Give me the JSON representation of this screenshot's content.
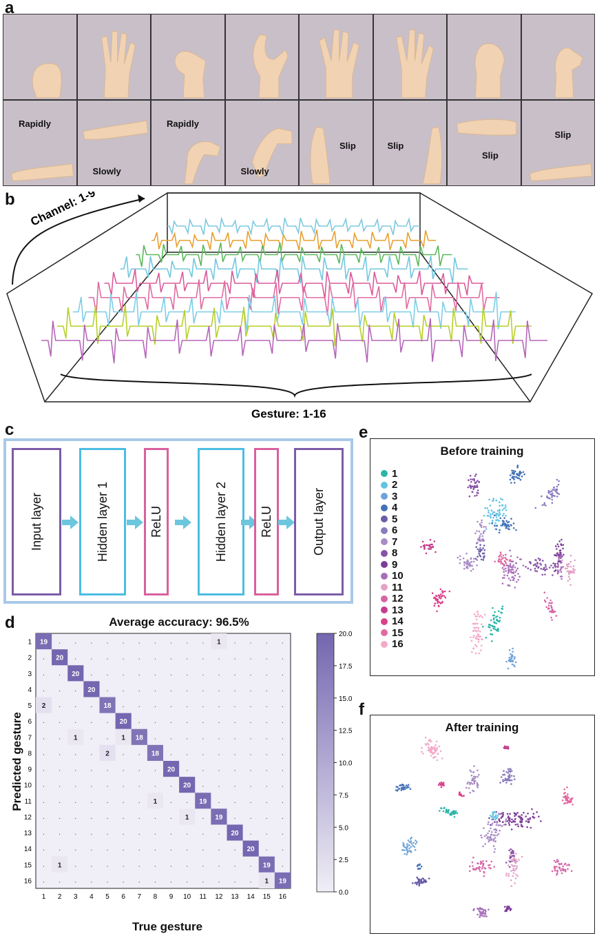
{
  "panel_labels": {
    "a": "a",
    "b": "b",
    "c": "c",
    "d": "d",
    "e": "e",
    "f": "f"
  },
  "panel_a": {
    "top_row_annotations": [],
    "bottom_row_annotations": [
      {
        "cell": 0,
        "labels": [
          {
            "text": "Rapidly",
            "pos": "top"
          }
        ]
      },
      {
        "cell": 1,
        "labels": [
          {
            "text": "Slowly",
            "pos": "bottom"
          }
        ]
      },
      {
        "cell": 2,
        "labels": [
          {
            "text": "Rapidly",
            "pos": "top"
          }
        ]
      },
      {
        "cell": 3,
        "labels": [
          {
            "text": "Slowly",
            "pos": "bottom"
          }
        ]
      },
      {
        "cell": 4,
        "labels": [
          {
            "text": "Slip",
            "pos": "mid-right"
          }
        ]
      },
      {
        "cell": 5,
        "labels": [
          {
            "text": "Slip",
            "pos": "mid-left"
          }
        ]
      },
      {
        "cell": 6,
        "labels": [
          {
            "text": "Slip",
            "pos": "bottom-mid"
          }
        ]
      },
      {
        "cell": 7,
        "labels": [
          {
            "text": "Slip",
            "pos": "top-mid"
          }
        ]
      }
    ]
  },
  "panel_b": {
    "channel_label": "Channel: 1-9",
    "gesture_label": "Gesture: 1-16",
    "channel_colors": [
      "#b565b9",
      "#b8cf2a",
      "#7dcde6",
      "#e06ba0",
      "#da5a9a",
      "#73c7e0",
      "#5cb85c",
      "#e8a030",
      "#7cc8e0"
    ]
  },
  "panel_c": {
    "layers": [
      {
        "label": "Input layer",
        "color": "#7b5ca8"
      },
      {
        "label": "Hidden layer 1",
        "color": "#4bbde3"
      },
      {
        "label": "ReLU",
        "color": "#d9609e"
      },
      {
        "label": "Hidden layer 2",
        "color": "#4bbde3"
      },
      {
        "label": "ReLU",
        "color": "#d9609e"
      },
      {
        "label": "Output layer",
        "color": "#7b5ca8"
      }
    ],
    "arrow_color": "#6cc6dd"
  },
  "chart_data": [
    {
      "type": "heatmap",
      "title": "Average accuracy: 96.5%",
      "xlabel": "True gesture",
      "ylabel": "Predicted gesture",
      "x_ticks": [
        "1",
        "2",
        "3",
        "4",
        "5",
        "6",
        "7",
        "8",
        "9",
        "10",
        "11",
        "12",
        "13",
        "14",
        "15",
        "16"
      ],
      "y_ticks": [
        "1",
        "2",
        "3",
        "4",
        "5",
        "6",
        "7",
        "8",
        "9",
        "10",
        "11",
        "12",
        "13",
        "14",
        "15",
        "16"
      ],
      "colorbar_ticks": [
        "0.0",
        "2.5",
        "5.0",
        "7.5",
        "10.0",
        "12.5",
        "15.0",
        "17.5",
        "20.0"
      ],
      "colorbar_range": [
        0,
        20
      ],
      "color_low": "#f0eef6",
      "color_high": "#7466b0",
      "cells": [
        {
          "pred": 1,
          "true": 1,
          "value": 19
        },
        {
          "pred": 1,
          "true": 12,
          "value": 1
        },
        {
          "pred": 2,
          "true": 2,
          "value": 20
        },
        {
          "pred": 3,
          "true": 3,
          "value": 20
        },
        {
          "pred": 4,
          "true": 4,
          "value": 20
        },
        {
          "pred": 5,
          "true": 1,
          "value": 2
        },
        {
          "pred": 5,
          "true": 5,
          "value": 18
        },
        {
          "pred": 6,
          "true": 6,
          "value": 20
        },
        {
          "pred": 7,
          "true": 3,
          "value": 1
        },
        {
          "pred": 7,
          "true": 6,
          "value": 1
        },
        {
          "pred": 7,
          "true": 7,
          "value": 18
        },
        {
          "pred": 8,
          "true": 5,
          "value": 2
        },
        {
          "pred": 8,
          "true": 8,
          "value": 18
        },
        {
          "pred": 9,
          "true": 9,
          "value": 20
        },
        {
          "pred": 10,
          "true": 10,
          "value": 20
        },
        {
          "pred": 11,
          "true": 8,
          "value": 1
        },
        {
          "pred": 11,
          "true": 11,
          "value": 19
        },
        {
          "pred": 12,
          "true": 10,
          "value": 1
        },
        {
          "pred": 12,
          "true": 12,
          "value": 19
        },
        {
          "pred": 13,
          "true": 13,
          "value": 20
        },
        {
          "pred": 14,
          "true": 14,
          "value": 20
        },
        {
          "pred": 15,
          "true": 2,
          "value": 1
        },
        {
          "pred": 15,
          "true": 15,
          "value": 19
        },
        {
          "pred": 16,
          "true": 15,
          "value": 1
        },
        {
          "pred": 16,
          "true": 16,
          "value": 19
        }
      ],
      "empty_cell_marker": "."
    },
    {
      "type": "scatter",
      "title": "Before training",
      "series_names": [
        "1",
        "2",
        "3",
        "4",
        "5",
        "6",
        "7",
        "8",
        "9",
        "10",
        "11",
        "12",
        "13",
        "14",
        "15",
        "16"
      ]
    },
    {
      "type": "scatter",
      "title": "After training",
      "series_names": [
        "1",
        "2",
        "3",
        "4",
        "5",
        "6",
        "7",
        "8",
        "9",
        "10",
        "11",
        "12",
        "13",
        "14",
        "15",
        "16"
      ]
    }
  ],
  "legend": {
    "items": [
      {
        "label": "1",
        "color": "#2bb5a8"
      },
      {
        "label": "2",
        "color": "#63c3e3"
      },
      {
        "label": "3",
        "color": "#6fa3d8"
      },
      {
        "label": "4",
        "color": "#4472b8"
      },
      {
        "label": "5",
        "color": "#6a5ca8"
      },
      {
        "label": "6",
        "color": "#8a7bbf"
      },
      {
        "label": "7",
        "color": "#a98cc6"
      },
      {
        "label": "8",
        "color": "#8752a8"
      },
      {
        "label": "9",
        "color": "#7d3c98"
      },
      {
        "label": "10",
        "color": "#a870b8"
      },
      {
        "label": "11",
        "color": "#e3a2c6"
      },
      {
        "label": "12",
        "color": "#d566a6"
      },
      {
        "label": "13",
        "color": "#c63c8e"
      },
      {
        "label": "14",
        "color": "#d9428a"
      },
      {
        "label": "15",
        "color": "#e06aa0"
      },
      {
        "label": "16",
        "color": "#f2aac8"
      }
    ]
  }
}
